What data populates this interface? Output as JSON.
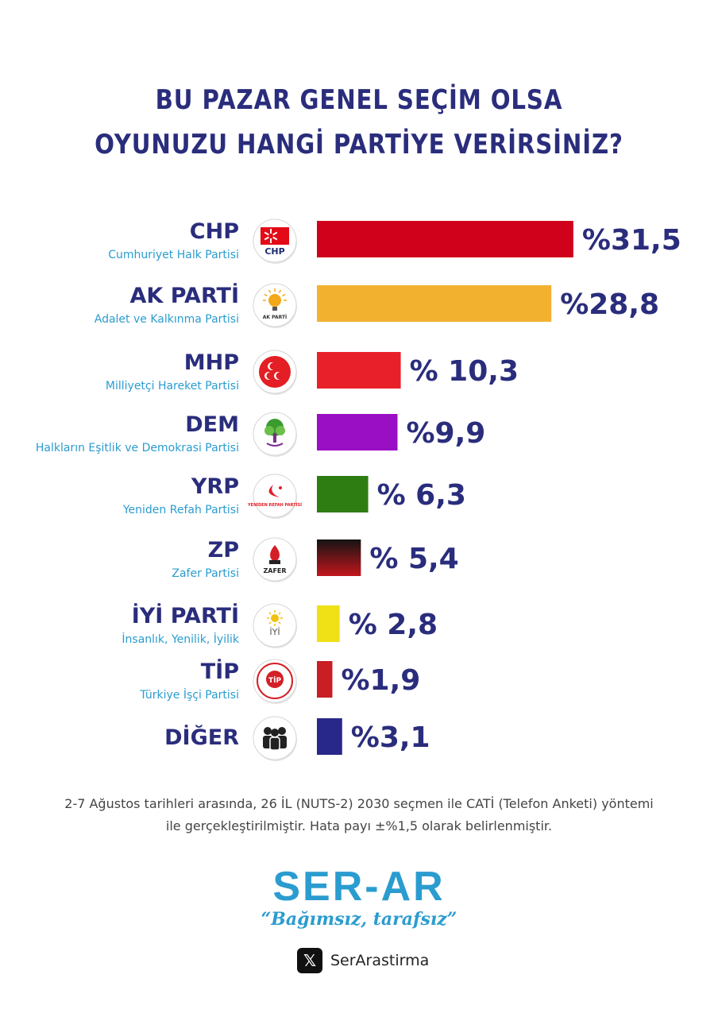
{
  "title_line1": "BU PAZAR GENEL SEÇİM OLSA",
  "title_line2": "OYUNUZU HANGİ PARTİYE VERİRSİNİZ?",
  "chart_data": {
    "type": "bar",
    "orientation": "horizontal",
    "title": "BU PAZAR GENEL SEÇİM OLSA OYUNUZU HANGİ PARTİYE VERİRSİNİZ?",
    "categories": [
      "CHP",
      "AK PARTİ",
      "MHP",
      "DEM",
      "YRP",
      "ZP",
      "İYİ PARTİ",
      "TİP",
      "DİĞER"
    ],
    "subtitles": [
      "Cumhuriyet Halk Partisi",
      "Adalet ve Kalkınma Partisi",
      "Milliyetçi Hareket Partisi",
      "Halkların Eşitlik ve Demokrasi Partisi",
      "Yeniden Refah Partisi",
      "Zafer Partisi",
      "İnsanlık, Yenilik, İyilik",
      "Türkiye İşçi Partisi",
      ""
    ],
    "values": [
      31.5,
      28.8,
      10.3,
      9.9,
      6.3,
      5.4,
      2.8,
      1.9,
      3.1
    ],
    "value_labels": [
      "%31,5",
      "%28,8",
      "% 10,3",
      "%9,9",
      "% 6,3",
      "% 5,4",
      "% 2,8",
      "%1,9",
      "%3,1"
    ],
    "colors": [
      "#d0021b",
      "#f2b230",
      "#e8202a",
      "#9b0fc4",
      "#2e7d12",
      "gradient-black-red",
      "#f0e016",
      "#c81e24",
      "#28288a"
    ],
    "logo_icons": [
      "chp-logo",
      "ak-parti-logo",
      "mhp-logo",
      "dem-logo",
      "yrp-logo",
      "zp-logo",
      "iyi-parti-logo",
      "tip-logo",
      "people-icon"
    ],
    "logo_texts": [
      "CHP",
      "AK PARTİ",
      "",
      "",
      "YENİDEN REFAH PARTİSİ",
      "ZAFER",
      "İYİ",
      "TİP",
      ""
    ],
    "grid": false,
    "legend": "none"
  },
  "note_line1": "2-7 Ağustos tarihleri arasında, 26 İL (NUTS-2) 2030 seçmen ile CATİ (Telefon Anketi) yöntemi",
  "note_line2": "ile gerçekleştirilmiştir. Hata payı ±%1,5 olarak belirlenmiştir.",
  "brand": "SER-AR",
  "slogan": "“Bağımsız, tarafsız”",
  "social_icon": "x-logo-icon",
  "social_handle": "SerArastirma"
}
